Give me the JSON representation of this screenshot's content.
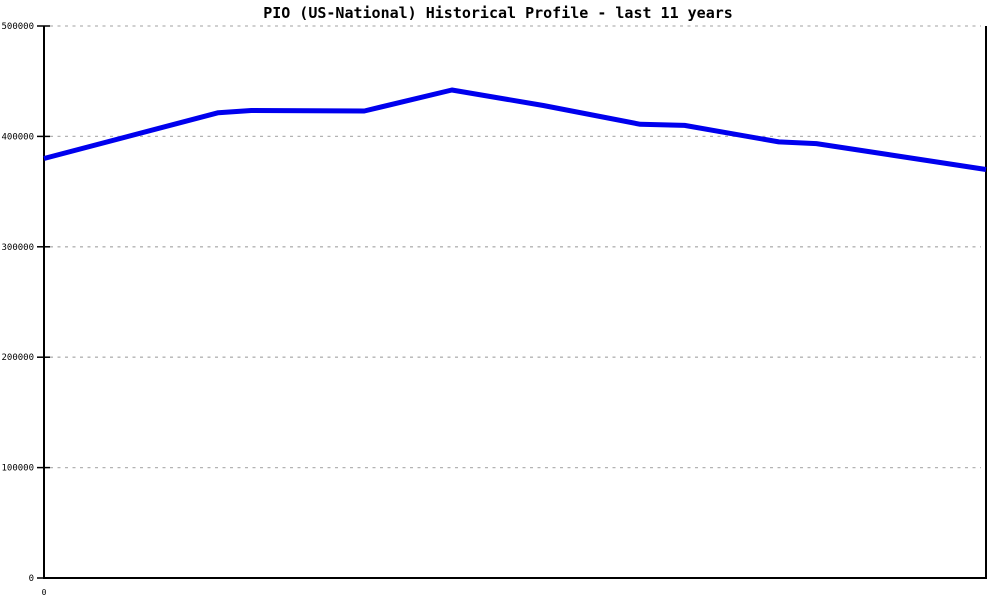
{
  "page": {
    "background": "#ffffff"
  },
  "chart_data": {
    "type": "line",
    "title": "PIO (US-National) Historical Profile - last 11 years",
    "xlabel": "",
    "ylabel": "",
    "x_axis": {
      "range": [
        0,
        10
      ],
      "unit": "years",
      "tick_labels": [
        {
          "x": 0,
          "label": "0"
        }
      ]
    },
    "y_axis": {
      "range": [
        0,
        500000
      ],
      "tick_step": 100000,
      "tick_labels": [
        "0",
        "100000",
        "200000",
        "300000",
        "400000",
        "500000"
      ]
    },
    "grid": {
      "horizontal": true,
      "style": "dotted",
      "color": "#b3b3b3"
    },
    "legend_position": "none",
    "series": [
      {
        "name": "PIO (US-National)",
        "color": "#0000ee",
        "stroke_width": 5,
        "points": [
          {
            "x": 0.0,
            "value": 380000
          },
          {
            "x": 1.85,
            "value": 421500
          },
          {
            "x": 2.2,
            "value": 423500
          },
          {
            "x": 3.4,
            "value": 423000
          },
          {
            "x": 4.33,
            "value": 442000
          },
          {
            "x": 5.3,
            "value": 428000
          },
          {
            "x": 6.33,
            "value": 411000
          },
          {
            "x": 6.8,
            "value": 410000
          },
          {
            "x": 7.8,
            "value": 395000
          },
          {
            "x": 8.2,
            "value": 393500
          },
          {
            "x": 10.0,
            "value": 370000
          }
        ]
      }
    ]
  }
}
